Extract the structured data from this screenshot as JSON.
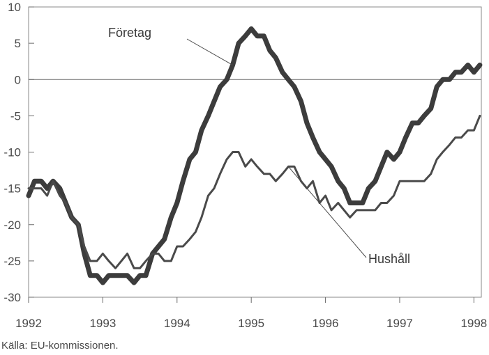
{
  "chart_data": {
    "type": "line",
    "title": "",
    "xlabel": "",
    "ylabel": "",
    "xlim": [
      1992,
      1998.1
    ],
    "ylim": [
      -30,
      10
    ],
    "x_ticks": [
      1992,
      1993,
      1994,
      1995,
      1996,
      1997,
      1998
    ],
    "x_tick_labels": [
      "1992",
      "1993",
      "1994",
      "1995",
      "1996",
      "1997",
      "1998"
    ],
    "y_ticks": [
      10,
      5,
      0,
      -5,
      -10,
      -15,
      -20,
      -25,
      -30
    ],
    "y_tick_labels": [
      "10",
      "5",
      "0",
      "-5",
      "-10",
      "-15",
      "-20",
      "-25",
      "-30"
    ],
    "grid": false,
    "zero_line": true,
    "legend": "none",
    "annotations": [
      {
        "text": "Företag",
        "series": "Företag"
      },
      {
        "text": "Hushåll",
        "series": "Hushåll"
      }
    ],
    "series": [
      {
        "name": "Företag",
        "color": "#3c3c3c",
        "style": "thick",
        "points": [
          [
            1992.0,
            -16
          ],
          [
            1992.08,
            -14
          ],
          [
            1992.17,
            -14
          ],
          [
            1992.25,
            -15
          ],
          [
            1992.33,
            -14
          ],
          [
            1992.42,
            -15
          ],
          [
            1992.5,
            -17
          ],
          [
            1992.58,
            -19
          ],
          [
            1992.67,
            -20
          ],
          [
            1992.75,
            -24
          ],
          [
            1992.83,
            -27
          ],
          [
            1992.92,
            -27
          ],
          [
            1993.0,
            -28
          ],
          [
            1993.08,
            -27
          ],
          [
            1993.17,
            -27
          ],
          [
            1993.25,
            -27
          ],
          [
            1993.33,
            -27
          ],
          [
            1993.42,
            -28
          ],
          [
            1993.5,
            -27
          ],
          [
            1993.58,
            -27
          ],
          [
            1993.67,
            -24
          ],
          [
            1993.75,
            -23
          ],
          [
            1993.83,
            -22
          ],
          [
            1993.92,
            -19
          ],
          [
            1994.0,
            -17
          ],
          [
            1994.08,
            -14
          ],
          [
            1994.17,
            -11
          ],
          [
            1994.25,
            -10
          ],
          [
            1994.33,
            -7
          ],
          [
            1994.42,
            -5
          ],
          [
            1994.5,
            -3
          ],
          [
            1994.58,
            -1
          ],
          [
            1994.67,
            0
          ],
          [
            1994.75,
            2
          ],
          [
            1994.83,
            5
          ],
          [
            1994.92,
            6
          ],
          [
            1995.0,
            7
          ],
          [
            1995.08,
            6
          ],
          [
            1995.17,
            6
          ],
          [
            1995.25,
            4
          ],
          [
            1995.33,
            3
          ],
          [
            1995.42,
            1
          ],
          [
            1995.5,
            0
          ],
          [
            1995.58,
            -1
          ],
          [
            1995.67,
            -3
          ],
          [
            1995.75,
            -6
          ],
          [
            1995.83,
            -8
          ],
          [
            1995.92,
            -10
          ],
          [
            1996.0,
            -11
          ],
          [
            1996.08,
            -12
          ],
          [
            1996.17,
            -14
          ],
          [
            1996.25,
            -15
          ],
          [
            1996.33,
            -17
          ],
          [
            1996.42,
            -17
          ],
          [
            1996.5,
            -17
          ],
          [
            1996.58,
            -15
          ],
          [
            1996.67,
            -14
          ],
          [
            1996.75,
            -12
          ],
          [
            1996.83,
            -10
          ],
          [
            1996.92,
            -11
          ],
          [
            1997.0,
            -10
          ],
          [
            1997.08,
            -8
          ],
          [
            1997.17,
            -6
          ],
          [
            1997.25,
            -6
          ],
          [
            1997.33,
            -5
          ],
          [
            1997.42,
            -4
          ],
          [
            1997.5,
            -1
          ],
          [
            1997.58,
            0
          ],
          [
            1997.67,
            0
          ],
          [
            1997.75,
            1
          ],
          [
            1997.83,
            1
          ],
          [
            1997.92,
            2
          ],
          [
            1998.0,
            1
          ],
          [
            1998.08,
            2
          ]
        ]
      },
      {
        "name": "Hushåll",
        "color": "#4a4a4a",
        "style": "thin",
        "points": [
          [
            1992.0,
            -15
          ],
          [
            1992.08,
            -15
          ],
          [
            1992.17,
            -15
          ],
          [
            1992.25,
            -16
          ],
          [
            1992.33,
            -14
          ],
          [
            1992.42,
            -16
          ],
          [
            1992.5,
            -17
          ],
          [
            1992.58,
            -19
          ],
          [
            1992.67,
            -20
          ],
          [
            1992.75,
            -23
          ],
          [
            1992.83,
            -25
          ],
          [
            1992.92,
            -25
          ],
          [
            1993.0,
            -24
          ],
          [
            1993.08,
            -25
          ],
          [
            1993.17,
            -26
          ],
          [
            1993.25,
            -25
          ],
          [
            1993.33,
            -24
          ],
          [
            1993.42,
            -26
          ],
          [
            1993.5,
            -26
          ],
          [
            1993.58,
            -25
          ],
          [
            1993.67,
            -24
          ],
          [
            1993.75,
            -24
          ],
          [
            1993.83,
            -25
          ],
          [
            1993.92,
            -25
          ],
          [
            1994.0,
            -23
          ],
          [
            1994.08,
            -23
          ],
          [
            1994.17,
            -22
          ],
          [
            1994.25,
            -21
          ],
          [
            1994.33,
            -19
          ],
          [
            1994.42,
            -16
          ],
          [
            1994.5,
            -15
          ],
          [
            1994.58,
            -13
          ],
          [
            1994.67,
            -11
          ],
          [
            1994.75,
            -10
          ],
          [
            1994.83,
            -10
          ],
          [
            1994.92,
            -12
          ],
          [
            1995.0,
            -11
          ],
          [
            1995.08,
            -12
          ],
          [
            1995.17,
            -13
          ],
          [
            1995.25,
            -13
          ],
          [
            1995.33,
            -14
          ],
          [
            1995.42,
            -13
          ],
          [
            1995.5,
            -12
          ],
          [
            1995.58,
            -12
          ],
          [
            1995.67,
            -14
          ],
          [
            1995.75,
            -15
          ],
          [
            1995.83,
            -14
          ],
          [
            1995.92,
            -17
          ],
          [
            1996.0,
            -16
          ],
          [
            1996.08,
            -18
          ],
          [
            1996.17,
            -17
          ],
          [
            1996.25,
            -18
          ],
          [
            1996.33,
            -19
          ],
          [
            1996.42,
            -18
          ],
          [
            1996.5,
            -18
          ],
          [
            1996.58,
            -18
          ],
          [
            1996.67,
            -18
          ],
          [
            1996.75,
            -17
          ],
          [
            1996.83,
            -17
          ],
          [
            1996.92,
            -16
          ],
          [
            1997.0,
            -14
          ],
          [
            1997.08,
            -14
          ],
          [
            1997.17,
            -14
          ],
          [
            1997.25,
            -14
          ],
          [
            1997.33,
            -14
          ],
          [
            1997.42,
            -13
          ],
          [
            1997.5,
            -11
          ],
          [
            1997.58,
            -10
          ],
          [
            1997.67,
            -9
          ],
          [
            1997.75,
            -8
          ],
          [
            1997.83,
            -8
          ],
          [
            1997.92,
            -7
          ],
          [
            1998.0,
            -7
          ],
          [
            1998.08,
            -5
          ]
        ]
      }
    ],
    "source": "Källa: EU-kommissionen."
  }
}
